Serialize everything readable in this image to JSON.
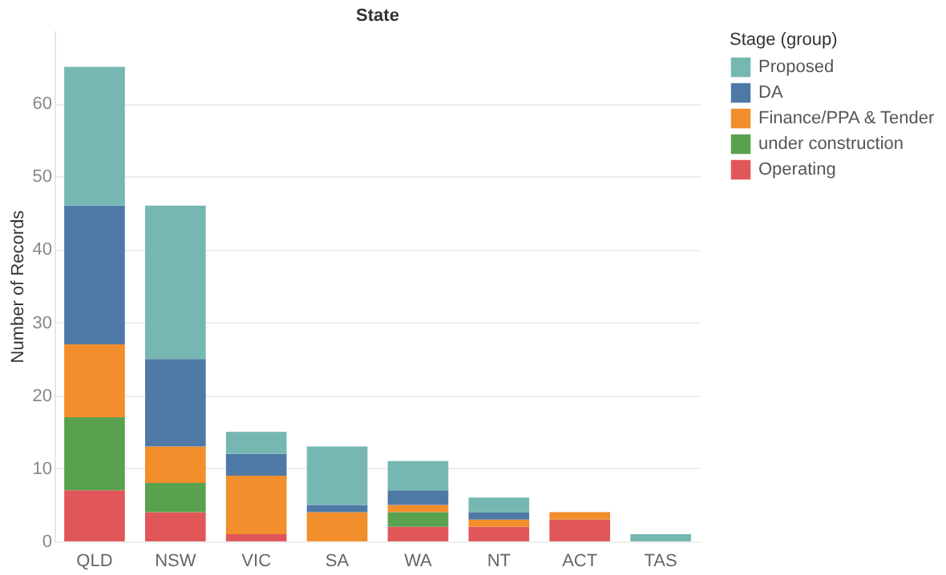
{
  "chart_data": {
    "type": "bar",
    "title": "State",
    "ylabel": "Number of Records",
    "legend_title": "Stage (group)",
    "stacked": true,
    "grid": "y",
    "legend": "top right",
    "categories": [
      "QLD",
      "NSW",
      "VIC",
      "SA",
      "WA",
      "NT",
      "ACT",
      "TAS"
    ],
    "ylim": [
      0,
      70
    ],
    "yticks": [
      0,
      10,
      20,
      30,
      40,
      50,
      60
    ],
    "series": [
      {
        "name": "Operating",
        "color": "#e15759",
        "values": [
          7,
          4,
          1,
          null,
          2,
          2,
          3,
          null
        ]
      },
      {
        "name": "under construction",
        "color": "#59a14f",
        "values": [
          10,
          4,
          null,
          null,
          2,
          null,
          null,
          null
        ]
      },
      {
        "name": "Finance/PPA & Tender",
        "color": "#f28e2b",
        "values": [
          10,
          5,
          8,
          4,
          1,
          1,
          1,
          null
        ]
      },
      {
        "name": "DA",
        "color": "#4e79a7",
        "values": [
          19,
          12,
          3,
          1,
          2,
          1,
          null,
          null
        ]
      },
      {
        "name": "Proposed",
        "color": "#76b7b2",
        "values": [
          19,
          21,
          3,
          8,
          4,
          2,
          null,
          1
        ]
      }
    ]
  }
}
